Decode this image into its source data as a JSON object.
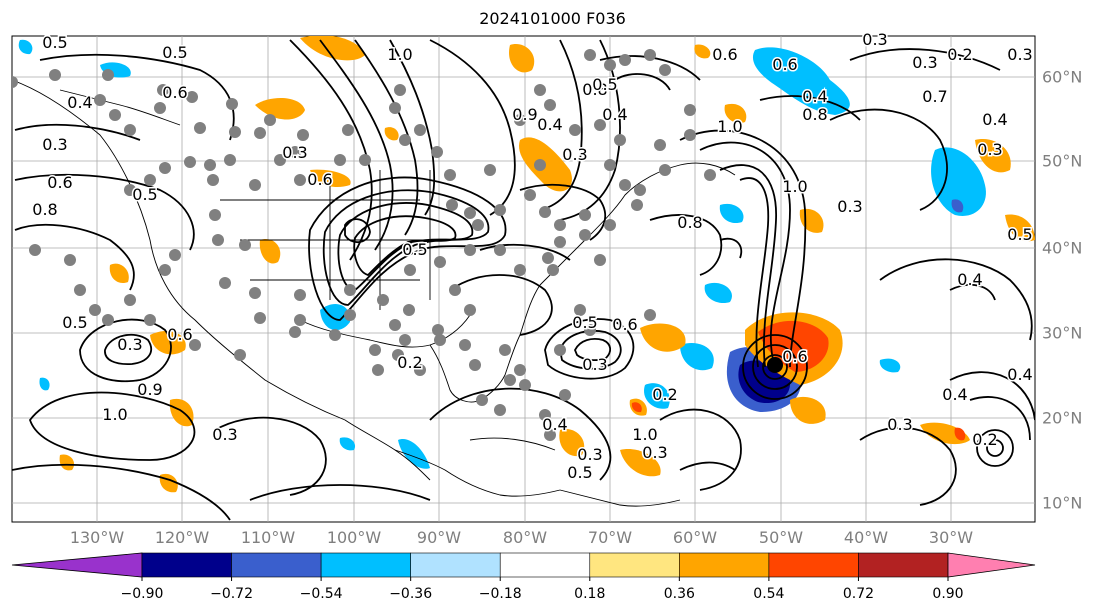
{
  "title": "2024101000 F036",
  "lon_labels": [
    "130°W",
    "120°W",
    "110°W",
    "100°W",
    "90°W",
    "80°W",
    "70°W",
    "60°W",
    "50°W",
    "40°W",
    "30°W"
  ],
  "lat_labels": [
    "60°N",
    "50°N",
    "40°N",
    "30°N",
    "20°N",
    "10°N"
  ],
  "contour_labels": [
    "0.5",
    "0.5",
    "0.4",
    "0.3",
    "0.6",
    "0.5",
    "0.8",
    "0.6",
    "0.3",
    "0.6",
    "1.0",
    "0.9",
    "0.4",
    "0.3",
    "0.6",
    "0.8",
    "0.6",
    "1.0",
    "0.4",
    "1.0",
    "0.8",
    "0.3",
    "0.7",
    "0.4",
    "0.2",
    "0.3",
    "0.5",
    "0.4",
    "0.3",
    "0.6",
    "0.2",
    "0.5",
    "0.6",
    "0.4",
    "0.3",
    "0.5",
    "0.8",
    "0.3",
    "0.2",
    "0.5",
    "0.3",
    "0.6",
    "0.9",
    "1.0",
    "0.3",
    "0.5",
    "0.4",
    "0.4",
    "0.3",
    "0.2",
    "0.5",
    "0.4",
    "0.3",
    "0.3",
    "0.3",
    "1.0"
  ],
  "colorbar": {
    "ticks": [
      "−0.90",
      "−0.72",
      "−0.54",
      "−0.36",
      "−0.18",
      "0.18",
      "0.36",
      "0.54",
      "0.72",
      "0.90"
    ],
    "colors": [
      "#9932cc",
      "#00008b",
      "#3a5fcd",
      "#00bfff",
      "#b0e2ff",
      "#ffffff",
      "#ffe680",
      "#ffa500",
      "#ff4500",
      "#b22222",
      "#ff7fb0"
    ]
  },
  "legend_colors": {
    "neg_strong": "#00008b",
    "neg_mid": "#3a5fcd",
    "neg_light": "#00bfff",
    "pos_light": "#ffa500",
    "pos_mid": "#ff4500",
    "pos_strong": "#b22222",
    "station_dot": "#808080"
  }
}
